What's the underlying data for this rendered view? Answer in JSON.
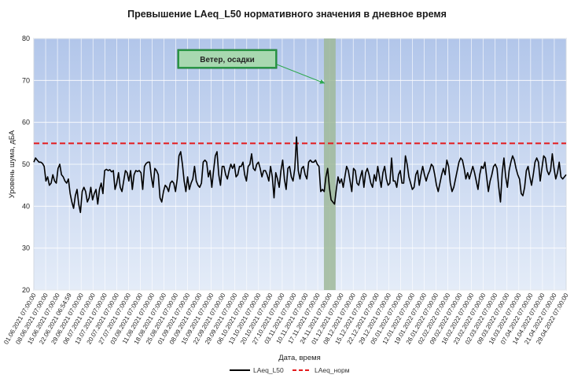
{
  "chart_data": {
    "type": "line",
    "title": "Превышение LAeq_L50 нормативного значения в дневное время",
    "ylabel": "Уровень шума, дБА",
    "xlabel": "Дата, время",
    "ylim": [
      20,
      80
    ],
    "yticks": [
      20,
      30,
      40,
      50,
      60,
      70,
      80
    ],
    "x_tick_labels": [
      "01.06.2021 07:00:00",
      "08.06.2021 07:00:00",
      "15.06.2021 07:00:00",
      "22.06.2021 06:54:59",
      "29.06.2021 07:00:00",
      "06.07.2021 07:00:00",
      "13.07.2021 07:00:00",
      "20.07.2021 07:00:00",
      "27.07.2021 07:00:00",
      "03.08.2021 07:00:00",
      "11.08.2021 07:00:00",
      "18.08.2021 07:00:00",
      "25.08.2021 07:00:00",
      "01.09.2021 07:00:00",
      "08.09.2021 07:00:00",
      "15.09.2021 07:00:00",
      "22.09.2021 07:00:00",
      "29.09.2021 07:00:00",
      "06.10.2021 07:00:00",
      "13.10.2021 07:00:00",
      "20.10.2021 07:00:00",
      "27.10.2021 07:00:00",
      "03.11.2021 07:00:00",
      "10.11.2021 07:00:00",
      "17.11.2021 07:00:00",
      "24.11.2021 07:00:00",
      "01.12.2021 07:00:00",
      "08.12.2021 07:00:00",
      "15.12.2021 07:00:00",
      "22.12.2021 07:00:00",
      "29.12.2021 07:00:00",
      "05.01.2022 07:00:00",
      "12.01.2022 07:00:00",
      "19.01.2022 07:00:00",
      "26.01.2022 07:00:00",
      "02.02.2022 07:00:00",
      "09.02.2022 07:00:00",
      "16.02.2022 07:00:00",
      "23.02.2022 07:00:00",
      "02.03.2022 07:00:00",
      "09.03.2022 07:00:00",
      "16.03.2022 07:00:00",
      "07.04.2022 07:00:00",
      "14.04.2022 07:00:00",
      "21.04.2022 07:00:00",
      "29.04.2022 07:00:00"
    ],
    "series": [
      {
        "name": "LAeq_L50",
        "color": "#000000",
        "values": [
          50.5,
          51.5,
          51.0,
          50.5,
          50.5,
          50.2,
          49.5,
          46.0,
          47.0,
          45.0,
          45.5,
          47.5,
          46.0,
          45.5,
          49.0,
          50.0,
          47.5,
          47.0,
          46.0,
          45.5,
          46.5,
          43.0,
          41.0,
          39.5,
          42.5,
          44.0,
          40.5,
          38.5,
          43.5,
          44.5,
          43.5,
          41.0,
          42.0,
          44.5,
          41.5,
          43.0,
          44.0,
          40.5,
          44.0,
          45.5,
          43.0,
          48.5,
          48.8,
          48.5,
          48.7,
          48.2,
          48.5,
          44.0,
          45.5,
          48.0,
          44.5,
          43.5,
          46.0,
          48.5,
          48.0,
          46.0,
          48.5,
          44.0,
          47.5,
          48.5,
          48.3,
          48.5,
          48.0,
          44.0,
          49.5,
          50.2,
          50.5,
          50.5,
          47.0,
          44.5,
          49.0,
          48.5,
          47.5,
          42.0,
          41.0,
          43.5,
          45.0,
          44.5,
          43.5,
          45.5,
          46.0,
          45.5,
          43.5,
          46.5,
          52.0,
          53.0,
          50.0,
          46.0,
          43.5,
          47.0,
          44.0,
          45.5,
          46.5,
          49.5,
          46.0,
          45.0,
          44.5,
          45.5,
          50.5,
          51.0,
          50.5,
          47.0,
          48.5,
          44.5,
          48.5,
          52.0,
          53.0,
          47.5,
          45.0,
          49.5,
          49.5,
          47.5,
          46.5,
          48.5,
          50.0,
          49.0,
          50.0,
          47.0,
          47.5,
          49.5,
          49.5,
          50.5,
          47.5,
          46.0,
          49.5,
          50.0,
          52.5,
          49.0,
          48.5,
          50.0,
          50.5,
          49.0,
          47.0,
          48.5,
          48.5,
          47.5,
          46.0,
          49.5,
          47.0,
          42.0,
          48.0,
          46.5,
          44.5,
          48.5,
          51.0,
          46.5,
          44.0,
          49.0,
          49.5,
          47.0,
          46.0,
          49.0,
          56.5,
          48.5,
          46.5,
          49.0,
          49.5,
          47.5,
          46.5,
          50.5,
          51.0,
          50.5,
          50.5,
          51.0,
          50.0,
          49.5,
          43.5,
          44.0,
          43.5,
          47.0,
          49.0,
          44.5,
          41.5,
          41.0,
          40.5,
          44.0,
          47.0,
          45.5,
          46.5,
          44.5,
          47.0,
          49.5,
          48.5,
          46.0,
          43.5,
          49.0,
          48.5,
          45.5,
          45.0,
          47.0,
          48.5,
          44.5,
          48.0,
          49.0,
          47.5,
          45.5,
          44.5,
          47.5,
          46.0,
          49.5,
          47.0,
          44.5,
          48.0,
          49.5,
          46.5,
          45.0,
          45.5,
          51.5,
          46.0,
          46.0,
          44.5,
          47.5,
          48.5,
          45.5,
          45.5,
          52.0,
          50.0,
          47.0,
          45.5,
          44.0,
          44.5,
          47.5,
          48.5,
          45.0,
          47.5,
          49.5,
          47.5,
          46.0,
          47.5,
          48.5,
          50.0,
          49.5,
          47.5,
          45.0,
          43.5,
          45.5,
          47.5,
          49.0,
          47.5,
          51.0,
          49.5,
          45.5,
          43.5,
          44.5,
          46.5,
          48.5,
          50.5,
          51.5,
          51.0,
          49.0,
          46.5,
          48.0,
          46.5,
          48.0,
          49.5,
          48.0,
          46.0,
          44.0,
          47.5,
          49.5,
          49.0,
          50.5,
          47.0,
          43.5,
          46.0,
          47.5,
          49.5,
          50.0,
          49.0,
          44.5,
          41.0,
          48.0,
          51.5,
          47.0,
          44.5,
          48.5,
          50.5,
          52.0,
          51.0,
          49.0,
          47.5,
          46.5,
          43.0,
          42.5,
          44.5,
          48.5,
          49.5,
          47.0,
          45.0,
          47.5,
          50.5,
          51.5,
          50.5,
          46.0,
          49.0,
          52.0,
          51.5,
          48.5,
          47.5,
          48.5,
          52.5,
          49.0,
          46.5,
          48.0,
          50.5,
          47.0,
          46.5,
          47.0,
          47.5
        ]
      },
      {
        "name": "LAeq_норм",
        "color": "#e41a1c",
        "constant": 55,
        "dashed": true
      }
    ],
    "highlight": {
      "from_fraction": 0.545,
      "to_fraction": 0.567,
      "color": "#9fb89a"
    },
    "annotation": {
      "text": "Ветер, осадки"
    },
    "grid": true,
    "legend_position": "bottom"
  }
}
